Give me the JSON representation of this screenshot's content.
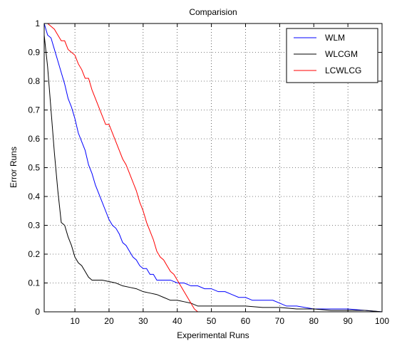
{
  "chart_data": {
    "type": "line",
    "title": "Comparision",
    "xlabel": "Experimental Runs",
    "ylabel": "Error Runs",
    "xlim": [
      1,
      100
    ],
    "ylim": [
      0,
      1
    ],
    "xticks": [
      10,
      20,
      30,
      40,
      50,
      60,
      70,
      80,
      90,
      100
    ],
    "yticks": [
      0,
      0.1,
      0.2,
      0.3,
      0.4,
      0.5,
      0.6,
      0.7,
      0.8,
      0.9,
      1
    ],
    "grid": true,
    "legend_position": "top-right",
    "series": [
      {
        "name": "WLM",
        "color": "#0000ff",
        "x": [
          1,
          2,
          3,
          4,
          5,
          6,
          7,
          8,
          9,
          10,
          11,
          12,
          13,
          14,
          15,
          16,
          17,
          18,
          19,
          20,
          21,
          22,
          23,
          24,
          25,
          26,
          27,
          28,
          29,
          30,
          31,
          32,
          33,
          34,
          35,
          36,
          38,
          40,
          42,
          44,
          46,
          48,
          50,
          52,
          54,
          56,
          58,
          60,
          62,
          64,
          66,
          68,
          70,
          72,
          75,
          80,
          85,
          90,
          95,
          100
        ],
        "y": [
          1.0,
          0.96,
          0.95,
          0.91,
          0.87,
          0.83,
          0.79,
          0.74,
          0.71,
          0.67,
          0.62,
          0.59,
          0.56,
          0.51,
          0.48,
          0.44,
          0.41,
          0.38,
          0.35,
          0.32,
          0.3,
          0.29,
          0.27,
          0.24,
          0.23,
          0.21,
          0.19,
          0.18,
          0.16,
          0.15,
          0.15,
          0.13,
          0.13,
          0.11,
          0.11,
          0.11,
          0.11,
          0.1,
          0.1,
          0.09,
          0.09,
          0.08,
          0.08,
          0.07,
          0.07,
          0.06,
          0.05,
          0.05,
          0.04,
          0.04,
          0.04,
          0.04,
          0.03,
          0.02,
          0.02,
          0.01,
          0.01,
          0.01,
          0.005,
          0.0
        ]
      },
      {
        "name": "WLCGM",
        "color": "#000000",
        "x": [
          1,
          2,
          3,
          4,
          5,
          6,
          7,
          8,
          9,
          10,
          11,
          12,
          13,
          14,
          15,
          16,
          18,
          20,
          22,
          24,
          26,
          28,
          30,
          32,
          34,
          36,
          38,
          40,
          42,
          44,
          46,
          50,
          55,
          60,
          65,
          70,
          75,
          80,
          85,
          90,
          95,
          100
        ],
        "y": [
          0.96,
          0.85,
          0.7,
          0.55,
          0.42,
          0.31,
          0.3,
          0.26,
          0.23,
          0.19,
          0.17,
          0.16,
          0.14,
          0.12,
          0.11,
          0.11,
          0.11,
          0.105,
          0.1,
          0.09,
          0.085,
          0.08,
          0.07,
          0.065,
          0.06,
          0.05,
          0.04,
          0.04,
          0.035,
          0.03,
          0.02,
          0.02,
          0.02,
          0.02,
          0.015,
          0.015,
          0.01,
          0.01,
          0.005,
          0.005,
          0.005,
          0.0
        ]
      },
      {
        "name": "LCWLCG",
        "color": "#ff0000",
        "x": [
          1,
          2,
          3,
          4,
          5,
          6,
          7,
          8,
          9,
          10,
          11,
          12,
          13,
          14,
          15,
          16,
          17,
          18,
          19,
          20,
          21,
          22,
          23,
          24,
          25,
          26,
          27,
          28,
          29,
          30,
          31,
          32,
          33,
          34,
          35,
          36,
          37,
          38,
          39,
          40,
          41,
          42,
          43,
          44,
          45,
          46,
          50,
          60,
          70,
          80,
          90,
          100
        ],
        "y": [
          1.0,
          1.0,
          0.99,
          0.98,
          0.96,
          0.94,
          0.94,
          0.91,
          0.9,
          0.89,
          0.86,
          0.84,
          0.81,
          0.81,
          0.77,
          0.74,
          0.71,
          0.68,
          0.65,
          0.65,
          0.62,
          0.59,
          0.56,
          0.53,
          0.51,
          0.48,
          0.45,
          0.42,
          0.38,
          0.35,
          0.31,
          0.28,
          0.25,
          0.21,
          0.19,
          0.18,
          0.16,
          0.14,
          0.13,
          0.11,
          0.09,
          0.07,
          0.05,
          0.03,
          0.01,
          0.0,
          0.0,
          0.0,
          0.0,
          0.0,
          0.0,
          0.0
        ]
      }
    ]
  }
}
